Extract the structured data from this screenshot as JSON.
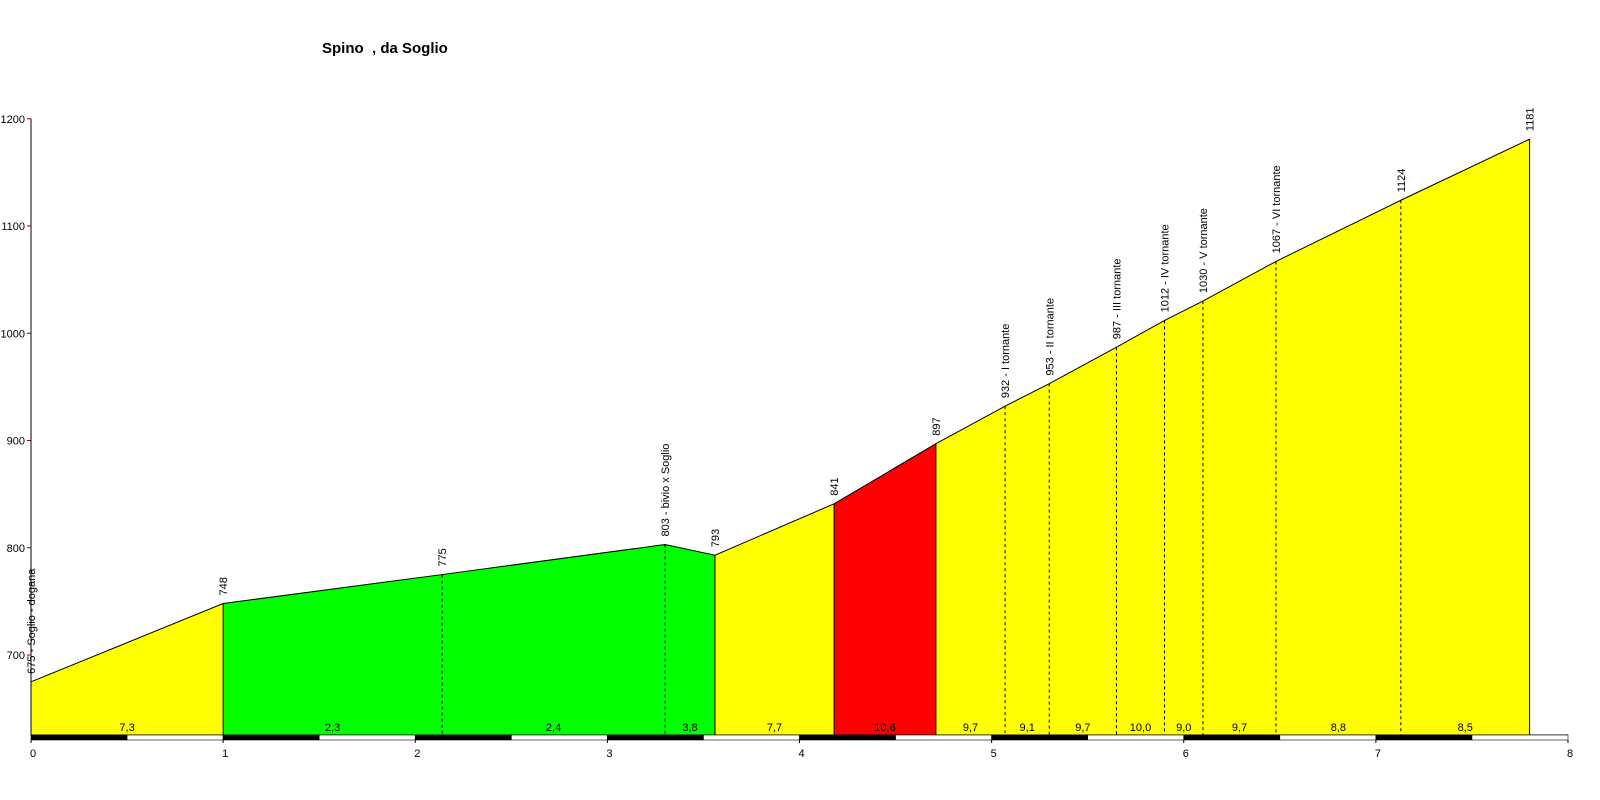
{
  "chart_data": {
    "type": "area",
    "title": "Spino  , da Soglio",
    "xlabel": "",
    "ylabel": "",
    "xlim": [
      0,
      8
    ],
    "ylim": [
      640,
      1200
    ],
    "x_ticks": [
      "0",
      "1",
      "2",
      "3",
      "4",
      "5",
      "6",
      "7",
      "8"
    ],
    "y_ticks": [
      "700",
      "800",
      "900",
      "1000",
      "1100",
      "1200"
    ],
    "points": [
      {
        "x": 0.0,
        "y": 675,
        "label": "675 - Soglio - dogana"
      },
      {
        "x": 1.0,
        "y": 748,
        "label": "748"
      },
      {
        "x": 2.14,
        "y": 775,
        "label": "775"
      },
      {
        "x": 3.3,
        "y": 803,
        "label": "803 - bivio x Soglio"
      },
      {
        "x": 3.56,
        "y": 793,
        "label": "793"
      },
      {
        "x": 4.18,
        "y": 841,
        "label": "841"
      },
      {
        "x": 4.71,
        "y": 897,
        "label": "897"
      },
      {
        "x": 5.07,
        "y": 932,
        "label": "932 - I tornante"
      },
      {
        "x": 5.3,
        "y": 953,
        "label": "953 - II tornante"
      },
      {
        "x": 5.65,
        "y": 987,
        "label": "987 - III tornante"
      },
      {
        "x": 5.9,
        "y": 1012,
        "label": "1012 - IV tornante"
      },
      {
        "x": 6.1,
        "y": 1030,
        "label": "1030 - V tornante"
      },
      {
        "x": 6.48,
        "y": 1067,
        "label": "1067 - VI tornante"
      },
      {
        "x": 7.13,
        "y": 1124,
        "label": "1124"
      },
      {
        "x": 7.8,
        "y": 1181,
        "label": "1181"
      }
    ],
    "segments": [
      {
        "gradient": "7,3",
        "color": "#ffff00"
      },
      {
        "gradient": "2,3",
        "color": "#00ff00"
      },
      {
        "gradient": "2,4",
        "color": "#00ff00"
      },
      {
        "gradient": "3,8",
        "color": "#00ff00"
      },
      {
        "gradient": "7,7",
        "color": "#ffff00"
      },
      {
        "gradient": "10,6",
        "color": "#ff0000"
      },
      {
        "gradient": "9,7",
        "color": "#ffff00"
      },
      {
        "gradient": "9,1",
        "color": "#ffff00"
      },
      {
        "gradient": "9,7",
        "color": "#ffff00"
      },
      {
        "gradient": "10,0",
        "color": "#ffff00"
      },
      {
        "gradient": "9,0",
        "color": "#ffff00"
      },
      {
        "gradient": "9,7",
        "color": "#ffff00"
      },
      {
        "gradient": "8,8",
        "color": "#ffff00"
      },
      {
        "gradient": "8,5",
        "color": "#ffff00"
      }
    ],
    "legend": "none",
    "grid": false
  }
}
